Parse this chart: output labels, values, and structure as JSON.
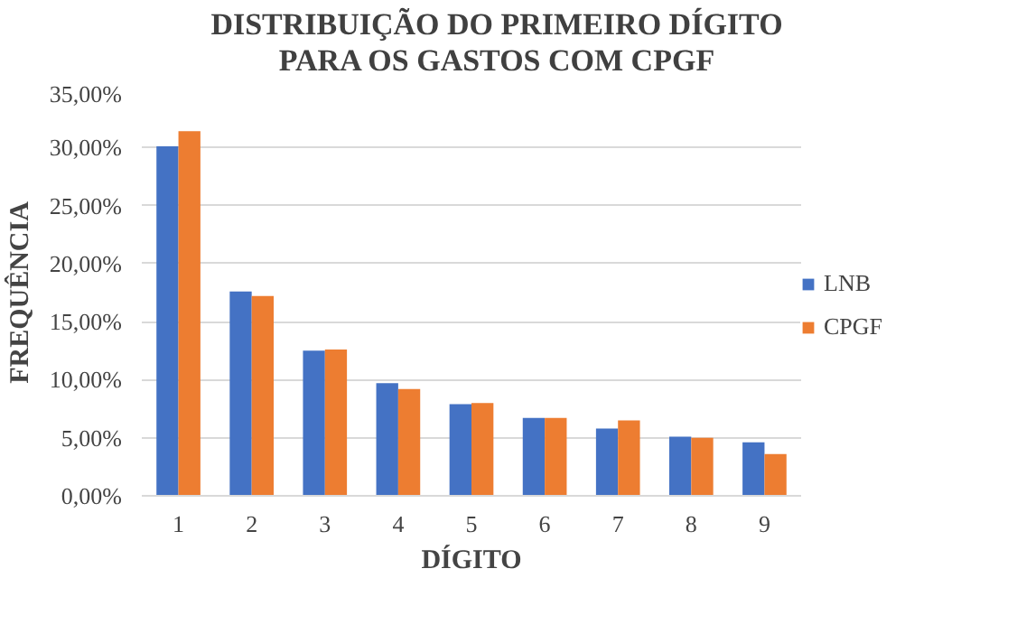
{
  "chart_data": {
    "type": "bar",
    "title": "DISTRIBUIÇÃO DO PRIMEIRO DÍGITO PARA OS GASTOS COM CPGF",
    "xlabel": "DÍGITO",
    "ylabel": "FREQUÊNCIA",
    "categories": [
      "1",
      "2",
      "3",
      "4",
      "5",
      "6",
      "7",
      "8",
      "9"
    ],
    "series": [
      {
        "name": "LNB",
        "color": "#4472c4",
        "values": [
          30.1,
          17.6,
          12.5,
          9.7,
          7.9,
          6.7,
          5.8,
          5.1,
          4.6
        ]
      },
      {
        "name": "CPGF",
        "color": "#ed7d31",
        "values": [
          31.4,
          17.2,
          12.6,
          9.2,
          8.0,
          6.7,
          6.5,
          5.0,
          3.6
        ]
      }
    ],
    "ylim": [
      0,
      35
    ],
    "yticks": [
      {
        "value": 0,
        "label": "0,00%"
      },
      {
        "value": 5,
        "label": "5,00%"
      },
      {
        "value": 10,
        "label": "10,00%"
      },
      {
        "value": 15,
        "label": "15,00%"
      },
      {
        "value": 20,
        "label": "20,00%"
      },
      {
        "value": 25,
        "label": "25,00%"
      },
      {
        "value": 30,
        "label": "30,00%"
      },
      {
        "value": 35,
        "label": "35,00%"
      }
    ],
    "grid": "y",
    "legend": "right"
  }
}
